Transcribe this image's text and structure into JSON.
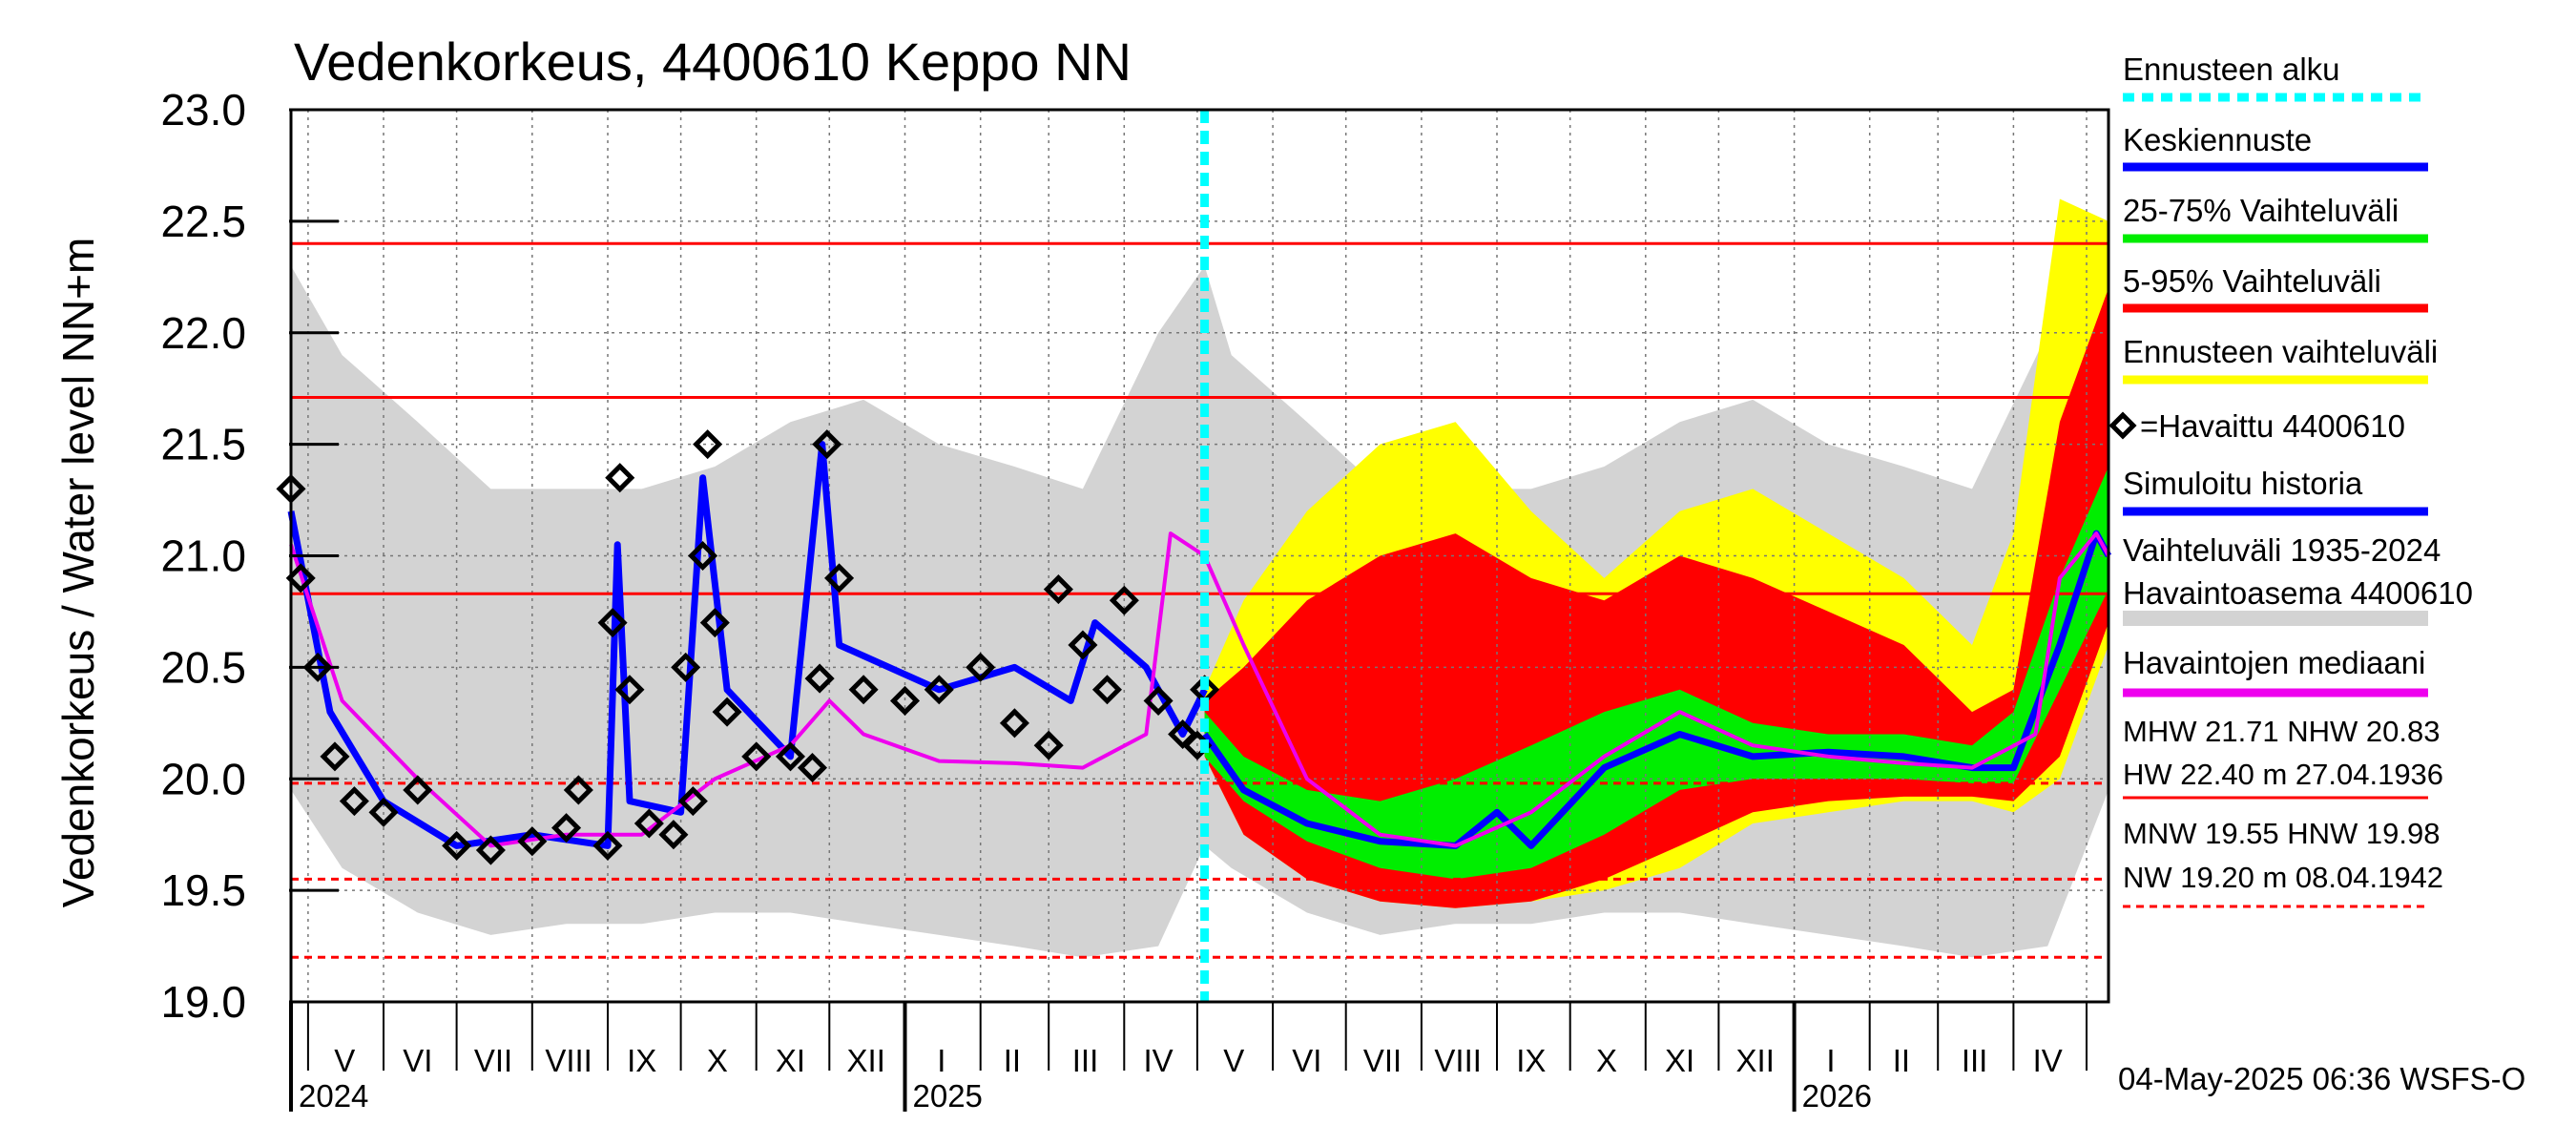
{
  "chart_data": {
    "type": "area",
    "title": "Vedenkorkeus, 4400610 Keppo NN",
    "ylabel": "Vedenkorkeus / Water level   NN+m",
    "ylim": [
      19.0,
      23.0
    ],
    "yticks": [
      "19.0",
      "19.5",
      "20.0",
      "20.5",
      "21.0",
      "21.5",
      "22.0",
      "22.5",
      "23.0"
    ],
    "x_range": [
      "2024-04-24",
      "2026-05-10"
    ],
    "forecast_start": "2025-05-04",
    "month_labels": [
      {
        "label": "V",
        "date": "2024-05-16"
      },
      {
        "label": "VI",
        "date": "2024-06-15"
      },
      {
        "label": "VII",
        "date": "2024-07-16"
      },
      {
        "label": "VIII",
        "date": "2024-08-16"
      },
      {
        "label": "IX",
        "date": "2024-09-15"
      },
      {
        "label": "X",
        "date": "2024-10-16"
      },
      {
        "label": "XI",
        "date": "2024-11-15"
      },
      {
        "label": "XII",
        "date": "2024-12-16"
      },
      {
        "label": "I",
        "date": "2025-01-16"
      },
      {
        "label": "II",
        "date": "2025-02-14"
      },
      {
        "label": "III",
        "date": "2025-03-16"
      },
      {
        "label": "IV",
        "date": "2025-04-15"
      },
      {
        "label": "V",
        "date": "2025-05-16"
      },
      {
        "label": "VI",
        "date": "2025-06-15"
      },
      {
        "label": "VII",
        "date": "2025-07-16"
      },
      {
        "label": "VIII",
        "date": "2025-08-16"
      },
      {
        "label": "IX",
        "date": "2025-09-15"
      },
      {
        "label": "X",
        "date": "2025-10-16"
      },
      {
        "label": "XI",
        "date": "2025-11-15"
      },
      {
        "label": "XII",
        "date": "2025-12-16"
      },
      {
        "label": "I",
        "date": "2026-01-16"
      },
      {
        "label": "II",
        "date": "2026-02-14"
      },
      {
        "label": "III",
        "date": "2026-03-16"
      },
      {
        "label": "IV",
        "date": "2026-04-15"
      }
    ],
    "month_boundaries": [
      "2024-05-01",
      "2024-06-01",
      "2024-07-01",
      "2024-08-01",
      "2024-09-01",
      "2024-10-01",
      "2024-11-01",
      "2024-12-01",
      "2025-01-01",
      "2025-02-01",
      "2025-03-01",
      "2025-04-01",
      "2025-05-01",
      "2025-06-01",
      "2025-07-01",
      "2025-08-01",
      "2025-09-01",
      "2025-10-01",
      "2025-11-01",
      "2025-12-01",
      "2026-01-01",
      "2026-02-01",
      "2026-03-01",
      "2026-04-01",
      "2026-05-01"
    ],
    "year_labels": [
      {
        "label": "2024",
        "date": "2024-04-24"
      },
      {
        "label": "2025",
        "date": "2025-01-01"
      },
      {
        "label": "2026",
        "date": "2026-01-01"
      }
    ],
    "reference_lines": [
      {
        "name": "HW",
        "value": 22.4,
        "style": "solid"
      },
      {
        "name": "MHW",
        "value": 21.71,
        "style": "solid"
      },
      {
        "name": "NHW",
        "value": 20.83,
        "style": "solid"
      },
      {
        "name": "HNW",
        "value": 19.98,
        "style": "dashed"
      },
      {
        "name": "MNW",
        "value": 19.55,
        "style": "dashed"
      },
      {
        "name": "NW",
        "value": 19.2,
        "style": "dashed"
      }
    ],
    "series": [
      {
        "name": "Vaihteluväli 1935-2024 Havaintoasema 4400610",
        "color": "#d3d3d3",
        "kind": "band",
        "x": [
          "2024-04-24",
          "2024-05-15",
          "2024-06-15",
          "2024-07-15",
          "2024-08-15",
          "2024-09-15",
          "2024-10-15",
          "2024-11-15",
          "2024-12-15",
          "2025-01-15",
          "2025-02-15",
          "2025-03-15",
          "2025-04-15",
          "2025-05-04",
          "2025-05-15",
          "2025-06-15",
          "2025-07-15",
          "2025-08-15",
          "2025-09-15",
          "2025-10-15",
          "2025-11-15",
          "2025-12-15",
          "2026-01-15",
          "2026-02-15",
          "2026-03-15",
          "2026-04-15",
          "2026-05-10"
        ],
        "lower": [
          19.95,
          19.6,
          19.4,
          19.3,
          19.35,
          19.35,
          19.4,
          19.4,
          19.35,
          19.3,
          19.25,
          19.2,
          19.25,
          19.7,
          19.6,
          19.4,
          19.3,
          19.35,
          19.35,
          19.4,
          19.4,
          19.35,
          19.3,
          19.25,
          19.2,
          19.25,
          19.95
        ],
        "upper": [
          22.3,
          21.9,
          21.6,
          21.3,
          21.3,
          21.3,
          21.4,
          21.6,
          21.7,
          21.5,
          21.4,
          21.3,
          22.0,
          22.3,
          21.9,
          21.6,
          21.3,
          21.3,
          21.3,
          21.4,
          21.6,
          21.7,
          21.5,
          21.4,
          21.3,
          22.0,
          22.3
        ]
      },
      {
        "name": "Ennusteen vaihteluväli",
        "color": "#ffff00",
        "kind": "band",
        "x": [
          "2025-05-04",
          "2025-05-20",
          "2025-06-15",
          "2025-07-15",
          "2025-08-15",
          "2025-09-15",
          "2025-10-15",
          "2025-11-15",
          "2025-12-15",
          "2026-01-15",
          "2026-02-15",
          "2026-03-15",
          "2026-04-01",
          "2026-04-20",
          "2026-05-10"
        ],
        "lower": [
          20.1,
          19.75,
          19.55,
          19.45,
          19.42,
          19.45,
          19.5,
          19.6,
          19.8,
          19.85,
          19.9,
          19.9,
          19.85,
          20.0,
          20.6
        ],
        "upper": [
          20.4,
          20.8,
          21.2,
          21.5,
          21.6,
          21.2,
          20.9,
          21.2,
          21.3,
          21.1,
          20.9,
          20.6,
          21.1,
          22.6,
          22.5
        ]
      },
      {
        "name": "5-95% Vaihteluväli",
        "color": "#ff0000",
        "kind": "band",
        "x": [
          "2025-05-04",
          "2025-05-20",
          "2025-06-15",
          "2025-07-15",
          "2025-08-15",
          "2025-09-15",
          "2025-10-15",
          "2025-11-15",
          "2025-12-15",
          "2026-01-15",
          "2026-02-15",
          "2026-03-15",
          "2026-04-01",
          "2026-04-20",
          "2026-05-10"
        ],
        "lower": [
          20.1,
          19.75,
          19.55,
          19.45,
          19.42,
          19.45,
          19.55,
          19.7,
          19.85,
          19.9,
          19.92,
          19.92,
          19.9,
          20.1,
          20.7
        ],
        "upper": [
          20.35,
          20.5,
          20.8,
          21.0,
          21.1,
          20.9,
          20.8,
          21.0,
          20.9,
          20.75,
          20.6,
          20.3,
          20.4,
          21.6,
          22.2
        ]
      },
      {
        "name": "25-75% Vaihteluväli",
        "color": "#00ee00",
        "kind": "band",
        "x": [
          "2025-05-04",
          "2025-05-20",
          "2025-06-15",
          "2025-07-15",
          "2025-08-15",
          "2025-09-15",
          "2025-10-15",
          "2025-11-15",
          "2025-12-15",
          "2026-01-15",
          "2026-02-15",
          "2026-03-15",
          "2026-04-01",
          "2026-04-20",
          "2026-05-10"
        ],
        "lower": [
          20.1,
          19.9,
          19.72,
          19.6,
          19.55,
          19.6,
          19.75,
          19.95,
          20.0,
          20.0,
          20.0,
          19.98,
          19.98,
          20.4,
          20.85
        ],
        "upper": [
          20.3,
          20.1,
          19.95,
          19.9,
          20.0,
          20.15,
          20.3,
          20.4,
          20.25,
          20.2,
          20.2,
          20.15,
          20.3,
          20.9,
          21.4
        ]
      },
      {
        "name": "Keskiennuste",
        "color": "#0000ff",
        "kind": "line",
        "x": [
          "2025-05-04",
          "2025-05-20",
          "2025-06-15",
          "2025-07-15",
          "2025-08-15",
          "2025-09-01",
          "2025-09-15",
          "2025-10-15",
          "2025-11-15",
          "2025-12-15",
          "2026-01-15",
          "2026-02-15",
          "2026-03-15",
          "2026-04-01",
          "2026-04-20",
          "2026-05-05",
          "2026-05-10"
        ],
        "y": [
          20.2,
          19.95,
          19.8,
          19.72,
          19.7,
          19.85,
          19.7,
          20.05,
          20.2,
          20.1,
          20.12,
          20.1,
          20.05,
          20.05,
          20.6,
          21.1,
          21.0
        ]
      },
      {
        "name": "Simuloitu historia",
        "color": "#0000ff",
        "kind": "line",
        "x": [
          "2024-04-24",
          "2024-05-10",
          "2024-06-01",
          "2024-07-01",
          "2024-08-01",
          "2024-09-01",
          "2024-09-05",
          "2024-09-10",
          "2024-10-01",
          "2024-10-10",
          "2024-10-20",
          "2024-11-15",
          "2024-11-28",
          "2024-12-05",
          "2025-01-15",
          "2025-02-15",
          "2025-03-10",
          "2025-03-20",
          "2025-04-10",
          "2025-04-25",
          "2025-05-04"
        ],
        "y": [
          21.2,
          20.3,
          19.9,
          19.7,
          19.75,
          19.7,
          21.05,
          19.9,
          19.85,
          21.35,
          20.4,
          20.1,
          21.5,
          20.6,
          20.4,
          20.5,
          20.35,
          20.7,
          20.5,
          20.2,
          20.4
        ]
      },
      {
        "name": "Havaintojen mediaani",
        "color": "#ee00ee",
        "kind": "line",
        "x": [
          "2024-04-24",
          "2024-05-15",
          "2024-06-15",
          "2024-07-15",
          "2024-08-15",
          "2024-09-15",
          "2024-10-15",
          "2024-11-15",
          "2024-12-01",
          "2024-12-15",
          "2025-01-15",
          "2025-02-15",
          "2025-03-15",
          "2025-04-10",
          "2025-04-20",
          "2025-05-04",
          "2025-05-20",
          "2025-06-15",
          "2025-07-15",
          "2025-08-15",
          "2025-09-15",
          "2025-10-15",
          "2025-11-15",
          "2025-12-15",
          "2026-01-15",
          "2026-02-15",
          "2026-03-15",
          "2026-04-10",
          "2026-04-20",
          "2026-05-05",
          "2026-05-10"
        ],
        "y": [
          21.05,
          20.35,
          20.0,
          19.7,
          19.75,
          19.75,
          20.0,
          20.15,
          20.35,
          20.2,
          20.08,
          20.07,
          20.05,
          20.2,
          21.1,
          21.0,
          20.6,
          20.0,
          19.75,
          19.7,
          19.85,
          20.1,
          20.3,
          20.15,
          20.1,
          20.07,
          20.05,
          20.2,
          20.9,
          21.1,
          21.0
        ]
      },
      {
        "name": "Havaittu 4400610",
        "color": "#000000",
        "kind": "markers",
        "x": [
          "2024-04-24",
          "2024-04-28",
          "2024-05-05",
          "2024-05-12",
          "2024-05-20",
          "2024-06-01",
          "2024-06-15",
          "2024-07-01",
          "2024-07-15",
          "2024-08-01",
          "2024-08-15",
          "2024-08-20",
          "2024-09-01",
          "2024-09-03",
          "2024-09-06",
          "2024-09-10",
          "2024-09-18",
          "2024-09-28",
          "2024-10-03",
          "2024-10-06",
          "2024-10-10",
          "2024-10-12",
          "2024-10-15",
          "2024-10-20",
          "2024-11-01",
          "2024-11-15",
          "2024-11-24",
          "2024-11-27",
          "2024-11-30",
          "2024-12-05",
          "2024-12-15",
          "2025-01-01",
          "2025-01-15",
          "2025-02-01",
          "2025-02-15",
          "2025-03-01",
          "2025-03-05",
          "2025-03-15",
          "2025-03-25",
          "2025-04-01",
          "2025-04-15",
          "2025-04-25",
          "2025-05-01",
          "2025-05-04"
        ],
        "y": [
          21.3,
          20.9,
          20.5,
          20.1,
          19.9,
          19.85,
          19.95,
          19.7,
          19.68,
          19.72,
          19.78,
          19.95,
          19.7,
          20.7,
          21.35,
          20.4,
          19.8,
          19.75,
          20.5,
          19.9,
          21.0,
          21.5,
          20.7,
          20.3,
          20.1,
          20.1,
          20.05,
          20.45,
          21.5,
          20.9,
          20.4,
          20.35,
          20.4,
          20.5,
          20.25,
          20.15,
          20.85,
          20.6,
          20.4,
          20.8,
          20.35,
          20.2,
          20.15,
          20.4
        ]
      }
    ],
    "legend_position": "right",
    "legend": [
      {
        "label": "Ennusteen alku",
        "color": "#00ffff",
        "style": "dotted"
      },
      {
        "label": "Keskiennuste",
        "color": "#0000ff",
        "style": "solid"
      },
      {
        "label": "25-75% Vaihteluväli",
        "color": "#00ee00",
        "style": "solid"
      },
      {
        "label": "5-95% Vaihteluväli",
        "color": "#ff0000",
        "style": "solid"
      },
      {
        "label": "Ennusteen vaihteluväli",
        "color": "#ffff00",
        "style": "solid"
      },
      {
        "label": "=Havaittu 4400610",
        "color": "#000000",
        "style": "marker"
      },
      {
        "label": "Simuloitu historia",
        "color": "#0000ff",
        "style": "solid"
      },
      {
        "label": "Vaihteluväli 1935-2024\n Havaintoasema 4400610",
        "color": "#d3d3d3",
        "style": "solid"
      },
      {
        "label": "Havaintojen mediaani",
        "color": "#ee00ee",
        "style": "solid"
      }
    ],
    "stats": {
      "line1": "MHW  21.71 NHW  20.83",
      "line2": "HW  22.40 m 27.04.1936",
      "line3": "MNW  19.55 HNW  19.98",
      "line4": "NW  19.20 m 08.04.1942"
    },
    "footer": "04-May-2025 06:36 WSFS-O",
    "grid": true
  }
}
